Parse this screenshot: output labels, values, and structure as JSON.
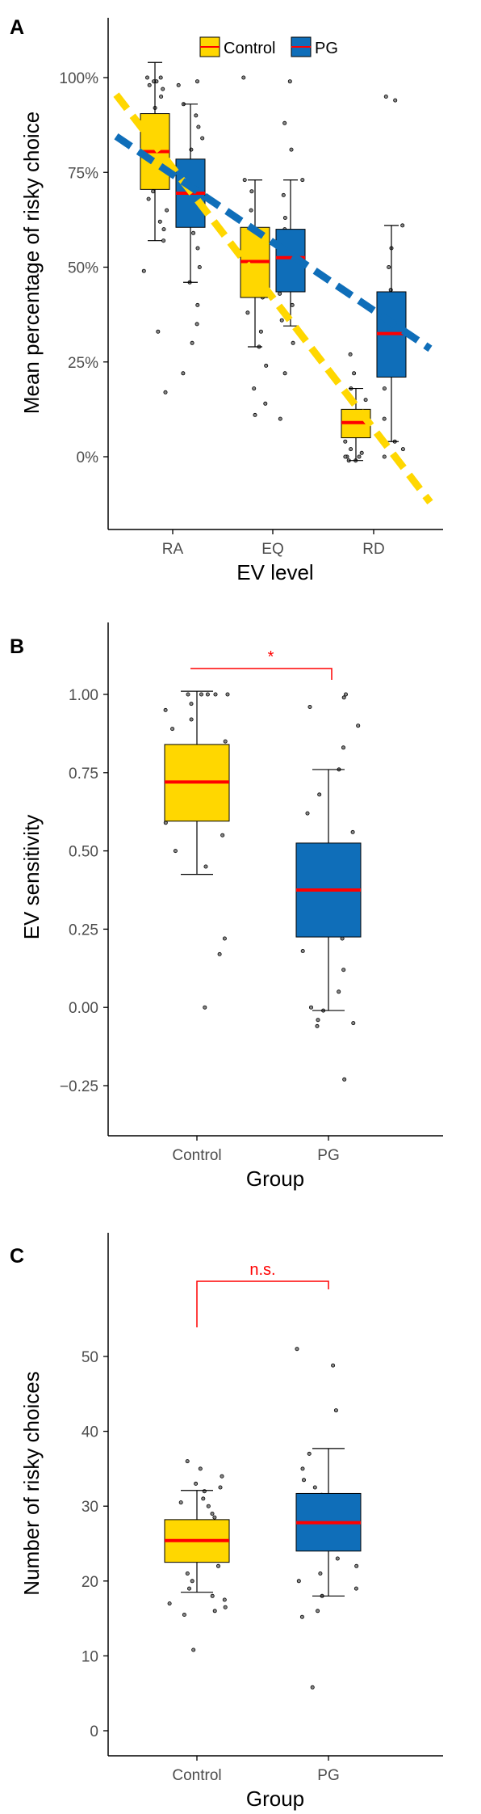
{
  "figure": {
    "panels": [
      "A",
      "B",
      "C"
    ]
  },
  "colors": {
    "control": "#FFD700",
    "pg": "#0F6EB9",
    "median": "#FF0000",
    "significance": "#FF0000",
    "axis": "#000000",
    "point_fill": "#888888"
  },
  "chart_data": [
    {
      "panel": "A",
      "type": "box",
      "xlabel": "EV level",
      "ylabel": "Mean percentage of risky choice",
      "categories": [
        "RA",
        "EQ",
        "RD"
      ],
      "ylim": [
        -0.18,
        1.13
      ],
      "yticks": [
        0,
        0.25,
        0.5,
        0.75,
        1.0
      ],
      "ytick_labels": [
        "0%",
        "25%",
        "50%",
        "75%",
        "100%"
      ],
      "legend": {
        "position": "top",
        "entries": [
          "Control",
          "PG"
        ]
      },
      "series": [
        {
          "name": "Control",
          "color": "#FFD700",
          "boxes": [
            {
              "category": "RA",
              "lower_whisker": 0.57,
              "q1": 0.705,
              "median": 0.805,
              "q3": 0.905,
              "upper_whisker": 1.04
            },
            {
              "category": "EQ",
              "lower_whisker": 0.29,
              "q1": 0.42,
              "median": 0.515,
              "q3": 0.605,
              "upper_whisker": 0.73
            },
            {
              "category": "RD",
              "lower_whisker": -0.01,
              "q1": 0.05,
              "median": 0.09,
              "q3": 0.125,
              "upper_whisker": 0.18
            }
          ],
          "trend_line": {
            "x": [
              "RA",
              "RD"
            ],
            "y_start": 0.955,
            "y_end": -0.12
          },
          "points": {
            "RA": [
              1.0,
              1.0,
              0.99,
              0.99,
              0.98,
              0.97,
              0.95,
              0.92,
              0.9,
              0.88,
              0.85,
              0.82,
              0.8,
              0.78,
              0.75,
              0.73,
              0.7,
              0.68,
              0.65,
              0.62,
              0.6,
              0.57,
              0.49,
              0.33,
              0.17
            ],
            "EQ": [
              1.0,
              0.73,
              0.7,
              0.65,
              0.6,
              0.57,
              0.55,
              0.53,
              0.5,
              0.48,
              0.46,
              0.44,
              0.42,
              0.38,
              0.33,
              0.29,
              0.24,
              0.18,
              0.14,
              0.11
            ],
            "RD": [
              0.27,
              0.22,
              0.18,
              0.15,
              0.12,
              0.1,
              0.09,
              0.08,
              0.06,
              0.04,
              0.02,
              0.01,
              0.0,
              0.0,
              0.0,
              -0.01,
              -0.01
            ]
          }
        },
        {
          "name": "PG",
          "color": "#0F6EB9",
          "boxes": [
            {
              "category": "RA",
              "lower_whisker": 0.46,
              "q1": 0.605,
              "median": 0.695,
              "q3": 0.785,
              "upper_whisker": 0.93
            },
            {
              "category": "EQ",
              "lower_whisker": 0.345,
              "q1": 0.435,
              "median": 0.525,
              "q3": 0.6,
              "upper_whisker": 0.73
            },
            {
              "category": "RD",
              "lower_whisker": 0.04,
              "q1": 0.21,
              "median": 0.325,
              "q3": 0.435,
              "upper_whisker": 0.61
            }
          ],
          "trend_line": {
            "x": [
              "RA",
              "RD"
            ],
            "y_start": 0.845,
            "y_end": 0.285
          },
          "points": {
            "RA": [
              0.99,
              0.98,
              0.93,
              0.9,
              0.87,
              0.84,
              0.81,
              0.78,
              0.75,
              0.72,
              0.68,
              0.65,
              0.62,
              0.59,
              0.55,
              0.5,
              0.46,
              0.4,
              0.35,
              0.3,
              0.22
            ],
            "EQ": [
              0.99,
              0.88,
              0.81,
              0.73,
              0.69,
              0.63,
              0.6,
              0.57,
              0.55,
              0.52,
              0.49,
              0.46,
              0.43,
              0.4,
              0.36,
              0.3,
              0.22,
              0.1
            ],
            "RD": [
              0.95,
              0.94,
              0.61,
              0.55,
              0.5,
              0.44,
              0.4,
              0.36,
              0.33,
              0.3,
              0.26,
              0.22,
              0.18,
              0.1,
              0.04,
              0.02,
              0.0
            ]
          }
        }
      ]
    },
    {
      "panel": "B",
      "type": "box",
      "xlabel": "Group",
      "ylabel": "EV sensitivity",
      "categories": [
        "Control",
        "PG"
      ],
      "ylim": [
        -0.33,
        1.1
      ],
      "yticks": [
        -0.25,
        0.0,
        0.25,
        0.5,
        0.75,
        1.0
      ],
      "ytick_labels": [
        "−0.25",
        "0.00",
        "0.25",
        "0.50",
        "0.75",
        "1.00"
      ],
      "significance": {
        "label": "*",
        "between": [
          "Control",
          "PG"
        ]
      },
      "boxes": [
        {
          "category": "Control",
          "color": "#FFD700",
          "lower_whisker": 0.425,
          "q1": 0.595,
          "median": 0.72,
          "q3": 0.84,
          "upper_whisker": 1.01
        },
        {
          "category": "PG",
          "color": "#0F6EB9",
          "lower_whisker": -0.01,
          "q1": 0.225,
          "median": 0.375,
          "q3": 0.525,
          "upper_whisker": 0.76
        }
      ],
      "points": {
        "Control": [
          1.0,
          1.0,
          1.0,
          1.0,
          1.0,
          0.97,
          0.95,
          0.92,
          0.89,
          0.85,
          0.81,
          0.78,
          0.75,
          0.72,
          0.69,
          0.66,
          0.63,
          0.59,
          0.55,
          0.5,
          0.45,
          0.22,
          0.17,
          0.0
        ],
        "PG": [
          1.0,
          0.99,
          0.96,
          0.9,
          0.83,
          0.76,
          0.68,
          0.62,
          0.56,
          0.5,
          0.45,
          0.41,
          0.37,
          0.33,
          0.29,
          0.25,
          0.22,
          0.18,
          0.12,
          0.05,
          0.0,
          -0.01,
          -0.04,
          -0.05,
          -0.06,
          -0.23
        ]
      }
    },
    {
      "panel": "C",
      "type": "box",
      "xlabel": "Group",
      "ylabel": "Number of risky choices",
      "categories": [
        "Control",
        "PG"
      ],
      "ylim": [
        -2,
        57
      ],
      "yticks": [
        0,
        10,
        20,
        30,
        40,
        50
      ],
      "ytick_labels": [
        "0",
        "10",
        "20",
        "30",
        "40",
        "50"
      ],
      "significance": {
        "label": "n.s.",
        "between": [
          "Control",
          "PG"
        ]
      },
      "boxes": [
        {
          "category": "Control",
          "color": "#FFD700",
          "lower_whisker": 18.5,
          "q1": 22.5,
          "median": 25.4,
          "q3": 28.2,
          "upper_whisker": 32.1
        },
        {
          "category": "PG",
          "color": "#0F6EB9",
          "lower_whisker": 18.0,
          "q1": 24.0,
          "median": 27.8,
          "q3": 31.7,
          "upper_whisker": 37.7
        }
      ],
      "points": {
        "Control": [
          36.0,
          35.0,
          34.0,
          33.0,
          32.5,
          32.0,
          31.0,
          30.5,
          30.0,
          29.0,
          28.5,
          27.5,
          27.0,
          26.0,
          25.5,
          25.0,
          24.0,
          23.5,
          23.0,
          22.0,
          21.0,
          20.0,
          19.0,
          18.0,
          17.5,
          17.0,
          16.5,
          16.0,
          15.5,
          10.8
        ],
        "PG": [
          51.0,
          48.8,
          42.8,
          37.0,
          35.0,
          33.5,
          32.5,
          31.5,
          30.5,
          30.0,
          29.0,
          28.0,
          27.0,
          26.5,
          26.0,
          25.0,
          24.5,
          23.0,
          22.0,
          21.0,
          20.0,
          19.0,
          18.0,
          16.0,
          15.2,
          5.8
        ]
      }
    }
  ]
}
